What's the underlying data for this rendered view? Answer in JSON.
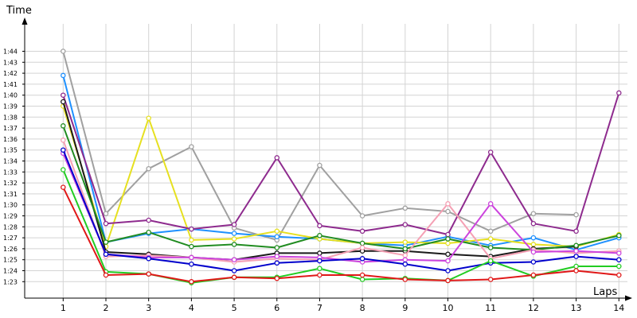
{
  "chart_data": {
    "type": "line",
    "xlabel": "Laps",
    "ylabel": "Time",
    "x": [
      1,
      2,
      3,
      4,
      5,
      6,
      7,
      8,
      9,
      10,
      11,
      12,
      13,
      14
    ],
    "y_ticks": [
      "1:23",
      "1:24",
      "1:25",
      "1:26",
      "1:27",
      "1:28",
      "1:29",
      "1:30",
      "1:31",
      "1:32",
      "1:33",
      "1:34",
      "1:35",
      "1:36",
      "1:37",
      "1:38",
      "1:39",
      "1:40",
      "1:41",
      "1:42",
      "1:43",
      "1:44"
    ],
    "y_tick_seconds": [
      83,
      84,
      85,
      86,
      87,
      88,
      89,
      90,
      91,
      92,
      93,
      94,
      95,
      96,
      97,
      98,
      99,
      100,
      101,
      102,
      103,
      104
    ],
    "ylim_seconds": [
      81.5,
      106.5
    ],
    "xlim": [
      0.1,
      14.2
    ],
    "grid": true,
    "series": [
      {
        "color": "#a0a0a0",
        "values": [
          104.0,
          89.2,
          93.3,
          95.3,
          87.9,
          86.8,
          93.6,
          89.0,
          89.7,
          89.4,
          87.6,
          89.2,
          89.1,
          null
        ]
      },
      {
        "color": "#1e90ff",
        "values": [
          101.8,
          86.6,
          87.4,
          87.8,
          87.4,
          87.1,
          86.9,
          86.5,
          86.3,
          87.1,
          86.3,
          87.0,
          85.9,
          87.0
        ]
      },
      {
        "color": "#e6e020",
        "values": [
          99.0,
          86.2,
          97.9,
          86.8,
          86.9,
          87.6,
          86.9,
          86.5,
          86.6,
          86.5,
          86.9,
          86.4,
          86.2,
          87.3
        ]
      },
      {
        "color": "#8e2b8e",
        "values": [
          100.0,
          88.3,
          88.6,
          87.8,
          88.2,
          94.3,
          88.1,
          87.6,
          88.2,
          87.3,
          94.8,
          88.3,
          87.6,
          100.2
        ]
      },
      {
        "color": "#1a1a1a",
        "values": [
          99.4,
          85.7,
          85.5,
          85.2,
          85.0,
          85.6,
          85.6,
          85.8,
          85.8,
          85.5,
          85.3,
          86.0,
          86.2,
          null
        ]
      },
      {
        "color": "#218c21",
        "values": [
          97.2,
          86.6,
          87.5,
          86.2,
          86.4,
          86.1,
          87.2,
          86.5,
          86.0,
          86.9,
          86.1,
          85.9,
          86.3,
          87.2
        ]
      },
      {
        "color": "#f5a0b4",
        "values": [
          95.9,
          85.3,
          85.4,
          85.2,
          84.8,
          85.1,
          85.0,
          86.1,
          85.4,
          90.1,
          85.1,
          85.9,
          85.6,
          85.8
        ]
      },
      {
        "color": "#cc44dd",
        "values": [
          94.7,
          85.5,
          85.2,
          85.2,
          85.0,
          85.3,
          85.2,
          84.8,
          85.0,
          84.9,
          90.1,
          85.7,
          85.8,
          85.6
        ]
      },
      {
        "color": "#0000cc",
        "values": [
          95.0,
          85.5,
          85.1,
          84.6,
          84.0,
          84.7,
          84.9,
          85.1,
          84.6,
          84.0,
          84.7,
          84.8,
          85.3,
          85.0
        ]
      },
      {
        "color": "#22cc22",
        "values": [
          93.2,
          83.9,
          83.7,
          82.9,
          83.4,
          83.4,
          84.2,
          83.2,
          83.3,
          83.1,
          84.9,
          83.5,
          84.4,
          84.4
        ]
      },
      {
        "color": "#e01818",
        "values": [
          91.6,
          83.6,
          83.7,
          83.0,
          83.4,
          83.3,
          83.6,
          83.6,
          83.2,
          83.1,
          83.2,
          83.6,
          84.0,
          83.6
        ]
      }
    ]
  }
}
